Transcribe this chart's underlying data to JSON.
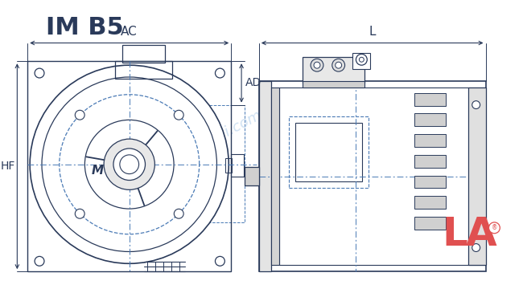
{
  "title": "IM B5",
  "bg_color": "#ffffff",
  "line_color": "#2a3a5a",
  "dash_color": "#4a7ab5",
  "watermark_color": "#a8c8e8",
  "label_AC": "AC",
  "label_AD": "AD",
  "label_L": "L",
  "label_HF": "HF",
  "label_M": "M",
  "logo_color": "#e05050"
}
